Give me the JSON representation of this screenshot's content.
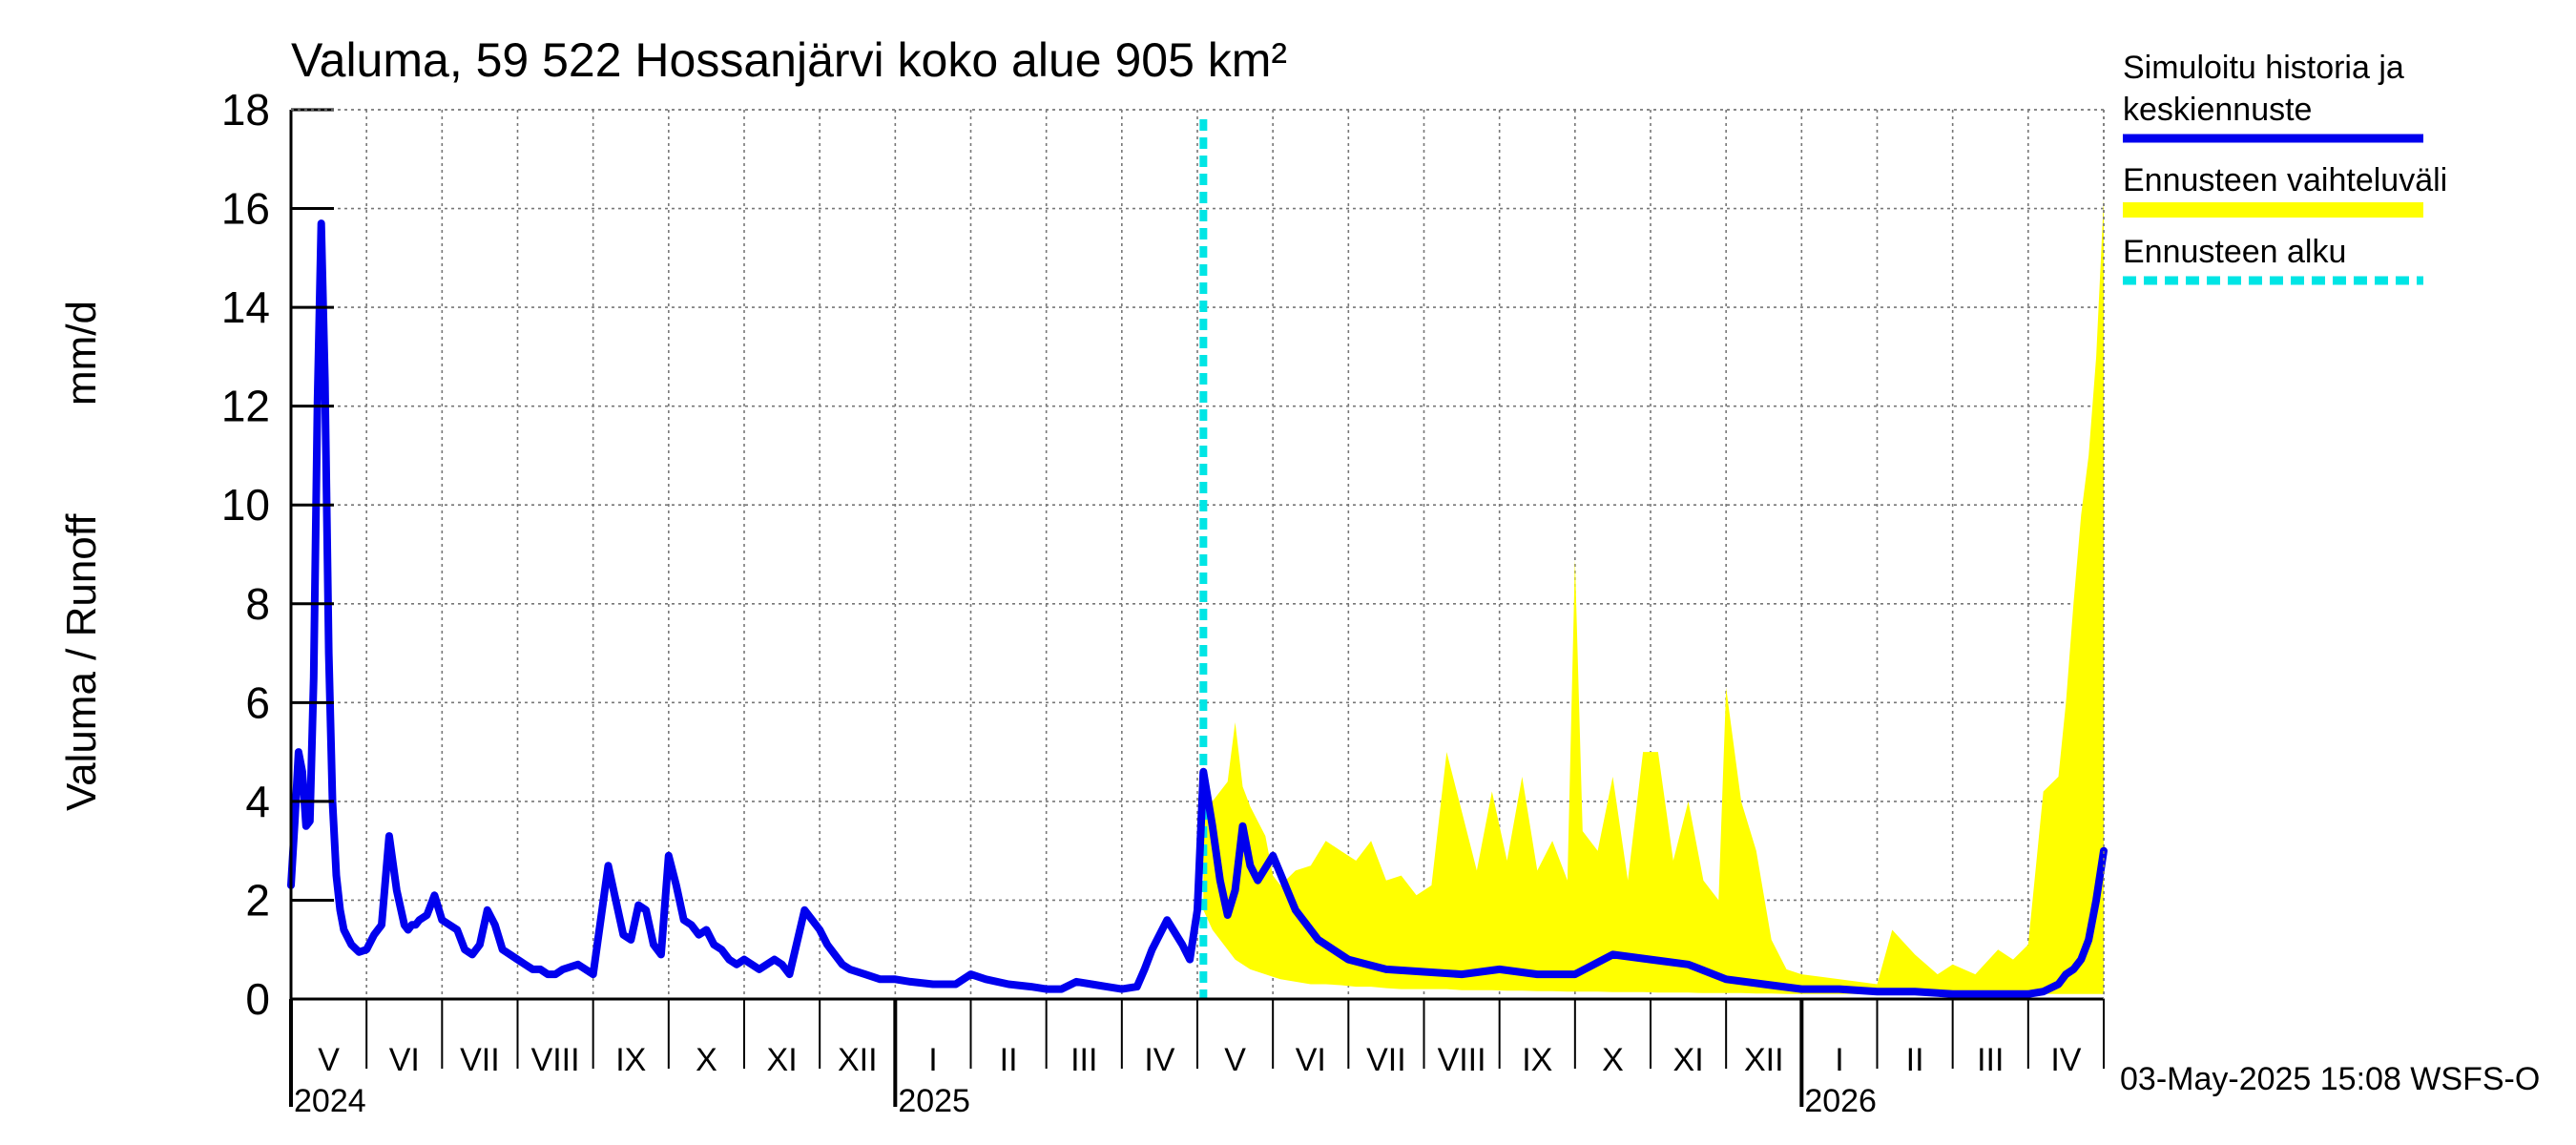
{
  "chart_data": {
    "type": "line",
    "title": "Valuma, 59 522 Hossanjärvi koko alue 905 km²",
    "ylabel_left": "Valuma / Runoff",
    "ylabel_right": "mm/d",
    "ylim": [
      0,
      18
    ],
    "yticks": [
      0,
      2,
      4,
      6,
      8,
      10,
      12,
      14,
      16,
      18
    ],
    "x_range_months": [
      0,
      24
    ],
    "x_origin": "2024-05-01",
    "month_labels": [
      {
        "pos": 0.5,
        "label": "V"
      },
      {
        "pos": 1.5,
        "label": "VI"
      },
      {
        "pos": 2.5,
        "label": "VII"
      },
      {
        "pos": 3.5,
        "label": "VIII"
      },
      {
        "pos": 4.5,
        "label": "IX"
      },
      {
        "pos": 5.5,
        "label": "X"
      },
      {
        "pos": 6.5,
        "label": "XI"
      },
      {
        "pos": 7.5,
        "label": "XII"
      },
      {
        "pos": 8.5,
        "label": "I"
      },
      {
        "pos": 9.5,
        "label": "II"
      },
      {
        "pos": 10.5,
        "label": "III"
      },
      {
        "pos": 11.5,
        "label": "IV"
      },
      {
        "pos": 12.5,
        "label": "V"
      },
      {
        "pos": 13.5,
        "label": "VI"
      },
      {
        "pos": 14.5,
        "label": "VII"
      },
      {
        "pos": 15.5,
        "label": "VIII"
      },
      {
        "pos": 16.5,
        "label": "IX"
      },
      {
        "pos": 17.5,
        "label": "X"
      },
      {
        "pos": 18.5,
        "label": "XI"
      },
      {
        "pos": 19.5,
        "label": "XII"
      },
      {
        "pos": 20.5,
        "label": "I"
      },
      {
        "pos": 21.5,
        "label": "II"
      },
      {
        "pos": 22.5,
        "label": "III"
      },
      {
        "pos": 23.5,
        "label": "IV"
      }
    ],
    "year_labels": [
      {
        "pos": 0,
        "label": "2024"
      },
      {
        "pos": 8,
        "label": "2025"
      },
      {
        "pos": 20,
        "label": "2026"
      }
    ],
    "forecast_start": 12.08,
    "series": [
      {
        "name": "Simuloitu historia ja keskiennuste",
        "color": "#0000ee",
        "x": [
          0,
          0.05,
          0.1,
          0.15,
          0.2,
          0.25,
          0.3,
          0.35,
          0.4,
          0.45,
          0.5,
          0.55,
          0.6,
          0.65,
          0.7,
          0.8,
          0.9,
          1.0,
          1.1,
          1.2,
          1.3,
          1.4,
          1.5,
          1.55,
          1.6,
          1.65,
          1.7,
          1.8,
          1.9,
          2.0,
          2.2,
          2.3,
          2.4,
          2.5,
          2.6,
          2.7,
          2.8,
          2.9,
          3.0,
          3.1,
          3.2,
          3.3,
          3.4,
          3.5,
          3.6,
          3.8,
          4.0,
          4.2,
          4.4,
          4.5,
          4.6,
          4.7,
          4.8,
          4.9,
          5.0,
          5.1,
          5.2,
          5.3,
          5.4,
          5.5,
          5.6,
          5.7,
          5.8,
          5.9,
          6.0,
          6.2,
          6.4,
          6.5,
          6.6,
          6.8,
          6.9,
          7.0,
          7.1,
          7.2,
          7.3,
          7.4,
          7.6,
          7.8,
          8.0,
          8.2,
          8.5,
          8.8,
          9.0,
          9.2,
          9.5,
          9.8,
          10.0,
          10.2,
          10.4,
          10.6,
          10.8,
          11.0,
          11.2,
          11.3,
          11.4,
          11.6,
          11.8,
          11.9,
          12.0,
          12.08,
          12.2,
          12.3,
          12.4,
          12.5,
          12.6,
          12.7,
          12.8,
          13.0,
          13.3,
          13.6,
          14.0,
          14.5,
          15.0,
          15.5,
          16.0,
          16.5,
          17.0,
          17.5,
          18.0,
          18.5,
          19.0,
          19.5,
          20.0,
          20.5,
          21.0,
          21.5,
          22.0,
          22.5,
          23.0,
          23.2,
          23.4,
          23.5,
          23.6,
          23.7,
          23.8,
          23.9,
          24.0
        ],
        "values": [
          2.3,
          3.6,
          5.0,
          4.6,
          3.5,
          3.6,
          6.5,
          12.0,
          15.7,
          12.5,
          7.0,
          4.0,
          2.5,
          1.8,
          1.4,
          1.1,
          0.95,
          1.0,
          1.3,
          1.5,
          3.3,
          2.2,
          1.5,
          1.4,
          1.5,
          1.5,
          1.6,
          1.7,
          2.1,
          1.6,
          1.4,
          1.0,
          0.9,
          1.1,
          1.8,
          1.5,
          1.0,
          0.9,
          0.8,
          0.7,
          0.6,
          0.6,
          0.5,
          0.5,
          0.6,
          0.7,
          0.5,
          2.7,
          1.3,
          1.2,
          1.9,
          1.8,
          1.1,
          0.9,
          2.9,
          2.3,
          1.6,
          1.5,
          1.3,
          1.4,
          1.1,
          1.0,
          0.8,
          0.7,
          0.8,
          0.6,
          0.8,
          0.7,
          0.5,
          1.8,
          1.6,
          1.4,
          1.1,
          0.9,
          0.7,
          0.6,
          0.5,
          0.4,
          0.4,
          0.35,
          0.3,
          0.3,
          0.5,
          0.4,
          0.3,
          0.25,
          0.2,
          0.2,
          0.35,
          0.3,
          0.25,
          0.2,
          0.25,
          0.6,
          1.0,
          1.6,
          1.1,
          0.8,
          1.8,
          4.6,
          3.5,
          2.4,
          1.7,
          2.2,
          3.5,
          2.7,
          2.4,
          2.9,
          1.8,
          1.2,
          0.8,
          0.6,
          0.55,
          0.5,
          0.6,
          0.5,
          0.5,
          0.9,
          0.8,
          0.7,
          0.4,
          0.3,
          0.2,
          0.2,
          0.15,
          0.15,
          0.1,
          0.1,
          0.1,
          0.15,
          0.3,
          0.5,
          0.6,
          0.8,
          1.2,
          2.0,
          3.0
        ]
      },
      {
        "name": "Ennusteen vaihteluväli",
        "color": "#ffff00",
        "x": [
          12.08,
          12.2,
          12.4,
          12.5,
          12.6,
          12.7,
          12.8,
          12.9,
          13.0,
          13.1,
          13.3,
          13.5,
          13.7,
          13.9,
          14.1,
          14.3,
          14.5,
          14.7,
          14.9,
          15.1,
          15.3,
          15.5,
          15.7,
          15.9,
          16.1,
          16.3,
          16.5,
          16.7,
          16.9,
          17.0,
          17.1,
          17.3,
          17.5,
          17.7,
          17.9,
          18.1,
          18.3,
          18.5,
          18.7,
          18.9,
          19.0,
          19.2,
          19.4,
          19.6,
          19.8,
          20.0,
          20.5,
          21.0,
          21.2,
          21.5,
          21.8,
          22.0,
          22.3,
          22.6,
          22.8,
          23.0,
          23.2,
          23.4,
          23.5,
          23.6,
          23.7,
          23.8,
          23.9,
          24.0
        ],
        "upper": [
          4.6,
          4.0,
          4.4,
          5.6,
          4.3,
          3.9,
          3.6,
          3.3,
          2.5,
          2.3,
          2.6,
          2.7,
          3.2,
          3.0,
          2.8,
          3.2,
          2.4,
          2.5,
          2.1,
          2.3,
          5.0,
          3.8,
          2.6,
          4.2,
          2.8,
          4.5,
          2.6,
          3.2,
          2.4,
          8.9,
          3.4,
          3.0,
          4.5,
          2.4,
          5.0,
          5.0,
          2.8,
          4.0,
          2.4,
          2.0,
          6.3,
          4.0,
          3.0,
          1.2,
          0.6,
          0.5,
          0.4,
          0.3,
          1.4,
          0.9,
          0.5,
          0.7,
          0.5,
          1.0,
          0.8,
          1.1,
          4.2,
          4.5,
          6.0,
          8.0,
          9.8,
          11.0,
          13.0,
          16.2
        ],
        "lower": [
          1.8,
          1.4,
          1.0,
          0.8,
          0.7,
          0.6,
          0.55,
          0.5,
          0.45,
          0.4,
          0.35,
          0.3,
          0.3,
          0.28,
          0.25,
          0.25,
          0.22,
          0.2,
          0.2,
          0.2,
          0.2,
          0.18,
          0.18,
          0.18,
          0.17,
          0.17,
          0.16,
          0.16,
          0.15,
          0.15,
          0.15,
          0.15,
          0.14,
          0.14,
          0.14,
          0.13,
          0.13,
          0.13,
          0.12,
          0.12,
          0.12,
          0.12,
          0.11,
          0.11,
          0.1,
          0.1,
          0.1,
          0.1,
          0.1,
          0.1,
          0.1,
          0.1,
          0.1,
          0.1,
          0.1,
          0.1,
          0.1,
          0.1,
          0.1,
          0.1,
          0.1,
          0.1,
          0.1,
          0.1
        ]
      },
      {
        "name": "Ennusteen alku",
        "color": "#00e5e5"
      }
    ],
    "legend": [
      {
        "label_line1": "Simuloitu historia ja",
        "label_line2": "keskiennuste",
        "color": "#0000ee",
        "style": "solid"
      },
      {
        "label_line1": "Ennusteen vaihteluväli",
        "label_line2": "",
        "color": "#ffff00",
        "style": "solid"
      },
      {
        "label_line1": "Ennusteen alku",
        "label_line2": "",
        "color": "#00e5e5",
        "style": "dashed"
      }
    ],
    "legend_position": "right",
    "footer": "03-May-2025 15:08 WSFS-O"
  }
}
